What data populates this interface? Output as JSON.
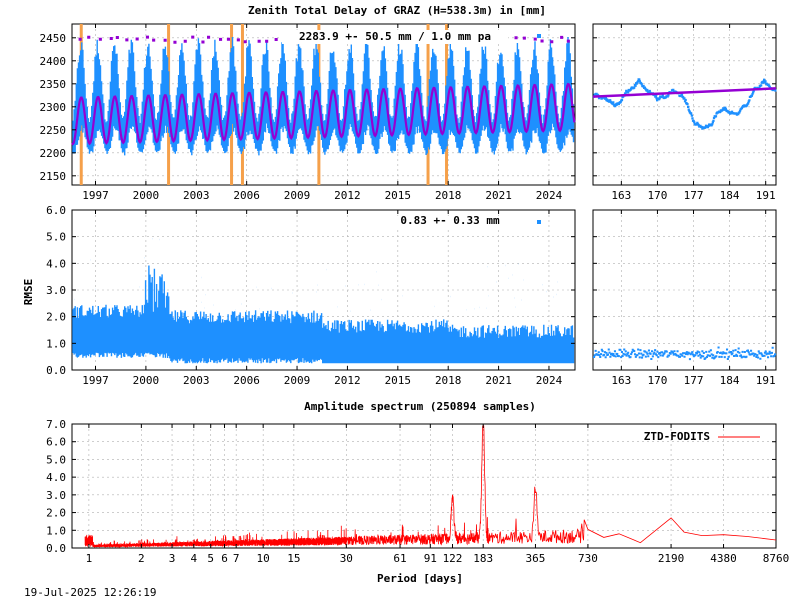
{
  "timestamp": "19-Jul-2025 12:26:19",
  "colors": {
    "ztd_points": "#1e90ff",
    "fit": "#9400d3",
    "rmse_points": "#1e90ff",
    "spectrum": "#ff0000",
    "event_lines": "#f5a04a"
  },
  "chart_data": [
    {
      "type": "scatter",
      "title": "Zenith Total Delay of GRAZ (H=538.3m) in [mm]",
      "annotation": "2283.9 +-  50.5 mm /  1.0 mm pa",
      "x_range": [
        1995.6,
        2025.55
      ],
      "ylim": [
        2130,
        2480
      ],
      "xticks": [
        "1997",
        "2000",
        "2003",
        "2006",
        "2009",
        "2012",
        "2015",
        "2018",
        "2021",
        "2024"
      ],
      "yticks": [
        "2150",
        "2200",
        "2250",
        "2300",
        "2350",
        "2400",
        "2450"
      ],
      "mean": 2283.9,
      "amplitude": 50.5,
      "trend_per_year": 1.0,
      "event_lines_year": [
        1996.15,
        2001.35,
        2005.1,
        2005.75,
        2010.3,
        2016.8,
        2017.9
      ]
    },
    {
      "type": "scatter",
      "x_range": [
        157.5,
        193
      ],
      "ylim": [
        2130,
        2480
      ],
      "xticks": [
        "163",
        "170",
        "177",
        "184",
        "191"
      ],
      "fit_start": 2322,
      "fit_end": 2340
    },
    {
      "type": "scatter",
      "annotation": "0.83 +-  0.33 mm",
      "ylabel": "RMSE",
      "x_range": [
        1995.6,
        2025.55
      ],
      "ylim": [
        0,
        6
      ],
      "xticks": [
        "1997",
        "2000",
        "2003",
        "2006",
        "2009",
        "2012",
        "2015",
        "2018",
        "2021",
        "2024"
      ],
      "yticks": [
        "0.0",
        "1.0",
        "2.0",
        "3.0",
        "4.0",
        "5.0",
        "6.0"
      ]
    },
    {
      "type": "scatter",
      "x_range": [
        157.5,
        193
      ],
      "ylim": [
        0,
        6
      ],
      "xticks": [
        "163",
        "170",
        "177",
        "184",
        "191"
      ],
      "level": 0.6
    },
    {
      "type": "line",
      "title": "Amplitude spectrum (250894 samples)",
      "xlabel": "Period [days]",
      "x_scale": "log",
      "x_range": [
        0.8,
        8760
      ],
      "ylim": [
        0,
        7
      ],
      "xticks": [
        {
          "v": 1,
          "label": "1"
        },
        {
          "v": 2,
          "label": "2"
        },
        {
          "v": 3,
          "label": "3"
        },
        {
          "v": 4,
          "label": "4"
        },
        {
          "v": 5,
          "label": "5"
        },
        {
          "v": 6,
          "label": "6"
        },
        {
          "v": 7,
          "label": "7"
        },
        {
          "v": 10,
          "label": "10"
        },
        {
          "v": 15,
          "label": "15"
        },
        {
          "v": 30,
          "label": "30"
        },
        {
          "v": 61,
          "label": "61"
        },
        {
          "v": 91,
          "label": "91"
        },
        {
          "v": 122,
          "label": "122"
        },
        {
          "v": 183,
          "label": "183"
        },
        {
          "v": 365,
          "label": "365"
        },
        {
          "v": 730,
          "label": "730"
        },
        {
          "v": 2190,
          "label": "2190"
        },
        {
          "v": 4380,
          "label": "4380"
        },
        {
          "v": 8760,
          "label": "8760"
        }
      ],
      "yticks": [
        "0.0",
        "1.0",
        "2.0",
        "3.0",
        "4.0",
        "5.0",
        "6.0",
        "7.0"
      ],
      "legend": "ZTD-FODITS",
      "legend_position": "top-right",
      "peaks": [
        {
          "period": 183,
          "amplitude": 6.8
        },
        {
          "period": 365,
          "amplitude": 2.9
        },
        {
          "period": 122,
          "amplitude": 2.3
        },
        {
          "period": 2190,
          "amplitude": 1.7
        },
        {
          "period": 730,
          "amplitude": 1.1
        }
      ]
    }
  ]
}
